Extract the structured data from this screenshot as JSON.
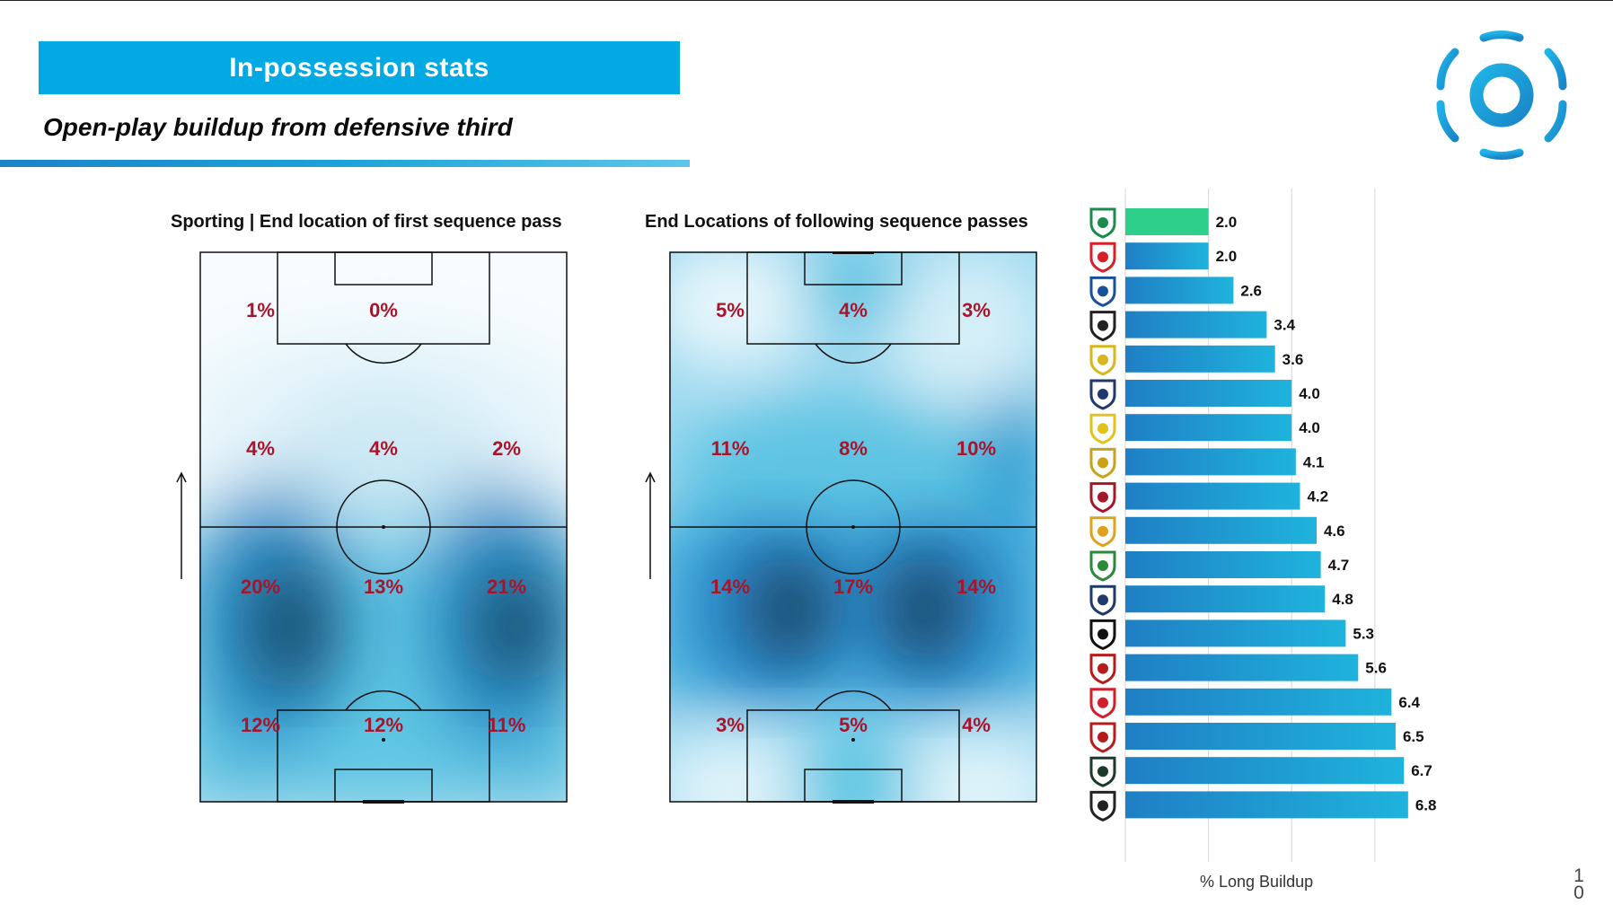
{
  "header": {
    "banner": "In-possession stats",
    "subtitle": "Open-play buildup from defensive third"
  },
  "pitches": [
    {
      "title": "Sporting | End location of first sequence pass",
      "zones": [
        [
          "1%",
          "0%",
          ""
        ],
        [
          "4%",
          "4%",
          "2%"
        ],
        [
          "20%",
          "13%",
          "21%"
        ],
        [
          "12%",
          "12%",
          "11%"
        ]
      ]
    },
    {
      "title": "End Locations of following sequence passes",
      "zones": [
        [
          "5%",
          "4%",
          "3%"
        ],
        [
          "11%",
          "8%",
          "10%"
        ],
        [
          "14%",
          "17%",
          "14%"
        ],
        [
          "3%",
          "5%",
          "4%"
        ]
      ]
    }
  ],
  "chart_data": {
    "type": "bar",
    "orientation": "horizontal",
    "xlabel": "% Long Buildup",
    "ylabel": "",
    "xlim": [
      0,
      8
    ],
    "grid": true,
    "values": [
      2.0,
      2.0,
      2.6,
      3.4,
      3.6,
      4.0,
      4.0,
      4.1,
      4.2,
      4.6,
      4.7,
      4.8,
      5.3,
      5.6,
      6.4,
      6.5,
      6.7,
      6.8
    ],
    "labels": [
      "2.0",
      "2.0",
      "2.6",
      "3.4",
      "3.6",
      "4.0",
      "4.0",
      "4.1",
      "4.2",
      "4.6",
      "4.7",
      "4.8",
      "5.3",
      "5.6",
      "6.4",
      "6.5",
      "6.7",
      "6.8"
    ],
    "crest_icons": [
      "sporting-crest-icon",
      "benfica-crest-icon",
      "porto-crest-icon",
      "vitoria-guimaraes-crest-icon",
      "estoril-crest-icon",
      "gil-vicente-crest-icon",
      "arouca-crest-icon",
      "rio-ave-crest-icon",
      "braga-crest-icon",
      "portimonense-crest-icon",
      "moreirense-crest-icon",
      "famalicao-crest-icon",
      "casa-pia-crest-icon",
      "afs-crest-icon",
      "estrela-amadora-crest-icon",
      "santa-clara-crest-icon",
      "farense-crest-icon",
      "boavista-crest-icon"
    ],
    "highlight_index": 0,
    "colors": {
      "highlight": "#2ecf8a",
      "bar_start": "#1f7fc4",
      "bar_end": "#1fb3dd"
    }
  },
  "page_number": "10"
}
